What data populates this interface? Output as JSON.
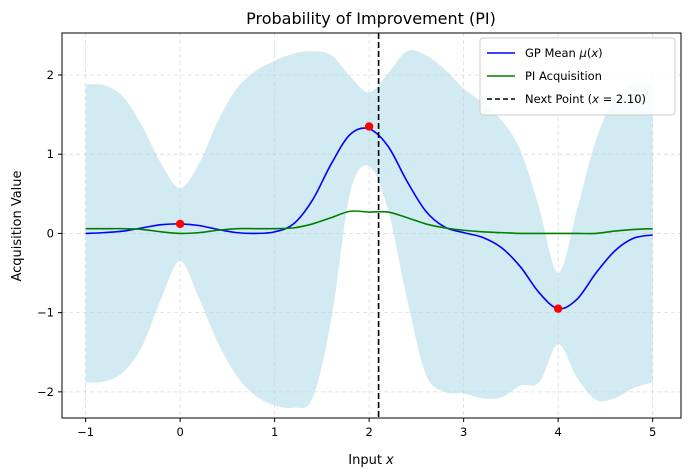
{
  "chart_data": {
    "type": "line",
    "title": "Probability of Improvement (PI)",
    "xlabel": "Input x",
    "ylabel": "Acquisition Value",
    "xlim": [
      -1.25,
      5.3
    ],
    "ylim": [
      -2.33,
      2.53
    ],
    "xticks": [
      -1,
      0,
      1,
      2,
      3,
      4,
      5
    ],
    "yticks": [
      -2,
      -1,
      0,
      1,
      2
    ],
    "grid": true,
    "legend_position": "top-right",
    "x": [
      -1.0,
      -0.8,
      -0.6,
      -0.4,
      -0.2,
      0.0,
      0.2,
      0.4,
      0.6,
      0.8,
      1.0,
      1.2,
      1.4,
      1.6,
      1.8,
      2.0,
      2.2,
      2.4,
      2.6,
      2.8,
      3.0,
      3.2,
      3.4,
      3.6,
      3.8,
      4.0,
      4.2,
      4.4,
      4.6,
      4.8,
      5.0
    ],
    "series": [
      {
        "name": "GP Mean μ(x)",
        "color": "#0000ff",
        "values": [
          0.0,
          0.01,
          0.03,
          0.07,
          0.11,
          0.12,
          0.1,
          0.05,
          0.01,
          0.0,
          0.02,
          0.12,
          0.42,
          0.88,
          1.25,
          1.32,
          1.1,
          0.66,
          0.28,
          0.08,
          0.01,
          -0.05,
          -0.18,
          -0.42,
          -0.75,
          -0.95,
          -0.83,
          -0.5,
          -0.22,
          -0.06,
          -0.02
        ]
      },
      {
        "name": "PI Acquisition",
        "color": "#008000",
        "values": [
          0.06,
          0.06,
          0.06,
          0.05,
          0.02,
          0.0,
          0.01,
          0.04,
          0.06,
          0.06,
          0.06,
          0.07,
          0.12,
          0.2,
          0.28,
          0.27,
          0.27,
          0.2,
          0.12,
          0.07,
          0.04,
          0.02,
          0.01,
          0.0,
          0.0,
          0.0,
          0.0,
          0.0,
          0.03,
          0.05,
          0.06
        ]
      }
    ],
    "confidence_band": {
      "color": "#add8e6",
      "upper": [
        1.88,
        1.87,
        1.72,
        1.35,
        0.88,
        0.57,
        0.88,
        1.42,
        1.83,
        2.05,
        2.18,
        2.27,
        2.3,
        2.25,
        1.98,
        1.78,
        2.02,
        2.3,
        2.25,
        2.07,
        1.83,
        1.65,
        1.43,
        1.05,
        0.32,
        -0.5,
        0.3,
        1.18,
        1.7,
        1.88,
        1.88
      ],
      "lower": [
        -1.88,
        -1.87,
        -1.75,
        -1.42,
        -0.82,
        -0.35,
        -0.82,
        -1.38,
        -1.8,
        -2.05,
        -2.17,
        -2.2,
        -2.08,
        -1.08,
        0.52,
        0.85,
        0.3,
        -0.82,
        -1.78,
        -2.0,
        -2.02,
        -2.08,
        -2.07,
        -1.92,
        -1.88,
        -1.4,
        -1.82,
        -2.1,
        -2.08,
        -1.95,
        -1.88
      ]
    },
    "observations": {
      "color": "#ff0000",
      "x": [
        0,
        2,
        4
      ],
      "y": [
        0.12,
        1.35,
        -0.95
      ]
    },
    "next_point": {
      "name": "Next Point (x = 2.10)",
      "x": 2.1,
      "color": "#000000"
    }
  }
}
